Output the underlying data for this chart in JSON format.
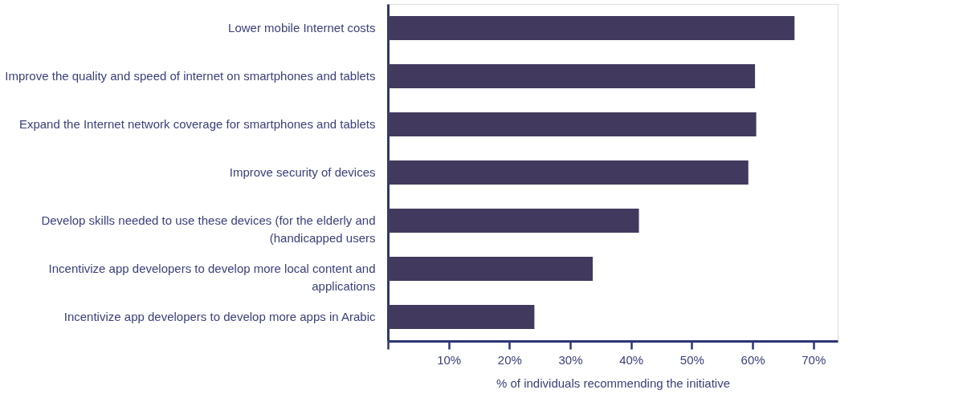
{
  "chart_data": {
    "type": "bar",
    "orientation": "horizontal",
    "xlabel": "% of individuals recommending the initiative",
    "categories": [
      "Lower mobile Internet costs",
      "Improve the quality and speed of internet on smartphones and tablets",
      "Expand the Internet network coverage for smartphones and tablets",
      "Improve security of devices",
      "Develop skills needed to use these devices (for the elderly and\n(handicapped users",
      "Incentivize app developers to develop more local content and\napplications",
      "Incentivize app developers to develop more apps in Arabic"
    ],
    "values": [
      66.9,
      60.4,
      60.6,
      59.3,
      41.3,
      33.7,
      24.1
    ],
    "color": "#413a5e",
    "xlim": [
      0,
      74
    ],
    "xticks": [
      {
        "value": 0,
        "label": null
      },
      {
        "value": 10,
        "label": "10%"
      },
      {
        "value": 20,
        "label": "20%"
      },
      {
        "value": 30,
        "label": "30%"
      },
      {
        "value": 40,
        "label": "40%"
      },
      {
        "value": 50,
        "label": "50%"
      },
      {
        "value": 60,
        "label": "60%"
      },
      {
        "value": 70,
        "label": "70%"
      }
    ],
    "grid": false
  }
}
